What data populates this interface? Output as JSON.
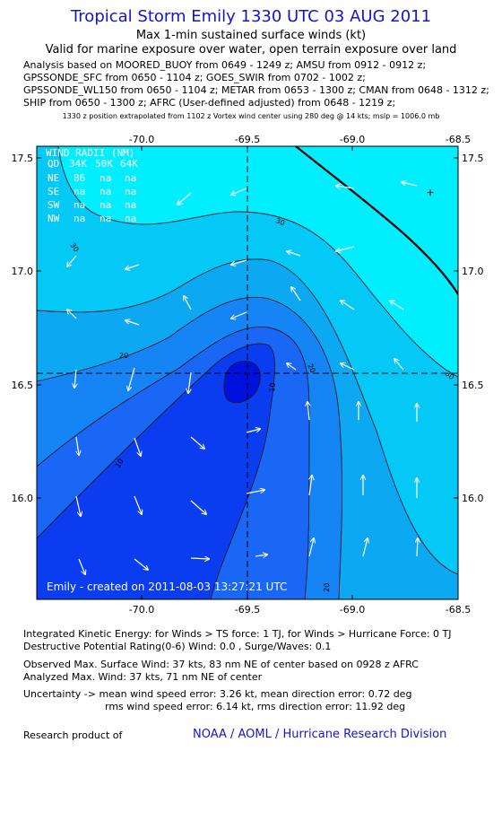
{
  "header": {
    "title": "Tropical Storm Emily 1330 UTC 03 AUG 2011",
    "subtitle1": "Max 1-min sustained surface winds (kt)",
    "subtitle2": "Valid for marine exposure over water, open terrain exposure over land"
  },
  "analysis_lines": [
    "Analysis based on MOORED_BUOY from 0649 - 1249 z; AMSU from 0912 - 0912 z;",
    "GPSSONDE_SFC from 0650 - 1104 z; GOES_SWIR from 0702 - 1002 z;",
    "GPSSONDE_WL150 from 0650 - 1104 z; METAR from 0653 - 1300 z; CMAN from 0648 - 1312 z;",
    "SHIP from 0650 - 1300 z; AFRC (User-defined adjusted) from 0648 - 1219 z;"
  ],
  "extrapolation_note": "1330 z position extrapolated from 1102 z Vortex wind center using 280 deg @ 14 kts; mslp = 1006.0 mb",
  "map": {
    "x_ticks": [
      "-70.0",
      "-69.5",
      "-69.0",
      "-68.5"
    ],
    "y_ticks": [
      "17.5",
      "17.0",
      "16.5",
      "16.0"
    ],
    "contour_labels": [
      "30",
      "30",
      "30",
      "20",
      "20",
      "20",
      "10",
      "10"
    ],
    "footer_label": "Emily - created on 2011-08-03 13:27:21 UTC",
    "center_marker": "+",
    "colors": {
      "lt5": "#0010dd",
      "c5_10": "#0a3cf0",
      "c10_15": "#1a66f5",
      "c15_20": "#1585f5",
      "c20_25": "#0ca8f2",
      "c25_30": "#04c8f6",
      "gt30": "#00eefe"
    }
  },
  "wind_radii": {
    "title": "WIND RADII (NM)",
    "header": [
      "QD",
      "34K",
      "50K",
      "64K"
    ],
    "rows": [
      [
        "NE",
        "86",
        "na",
        "na"
      ],
      [
        "SE",
        "na",
        "na",
        "na"
      ],
      [
        "SW",
        "na",
        "na",
        "na"
      ],
      [
        "NW",
        "na",
        "na",
        "na"
      ]
    ]
  },
  "info": {
    "ike": "Integrated Kinetic Energy:  for Winds > TS force: 1 TJ,  for Winds > Hurricane Force: 0 TJ",
    "dpr": "Destructive Potential Rating(0-6)   Wind: 0.0 , Surge/Waves: 0.1",
    "observed": "Observed Max. Surface Wind: 37 kts, 83 nm NE of center based on 0928 z AFRC",
    "analyzed": "Analyzed Max. Wind: 37 kts, 71 nm NE of center",
    "uncertainty1": "Uncertainty -> mean wind speed error: 3.26 kt,   mean direction error: 0.72 deg",
    "uncertainty2": "rms wind speed error: 6.14 kt,   rms direction error: 11.92 deg"
  },
  "footer": {
    "research": "Research product of",
    "noaa": "NOAA / AOML / Hurricane Research Division"
  }
}
